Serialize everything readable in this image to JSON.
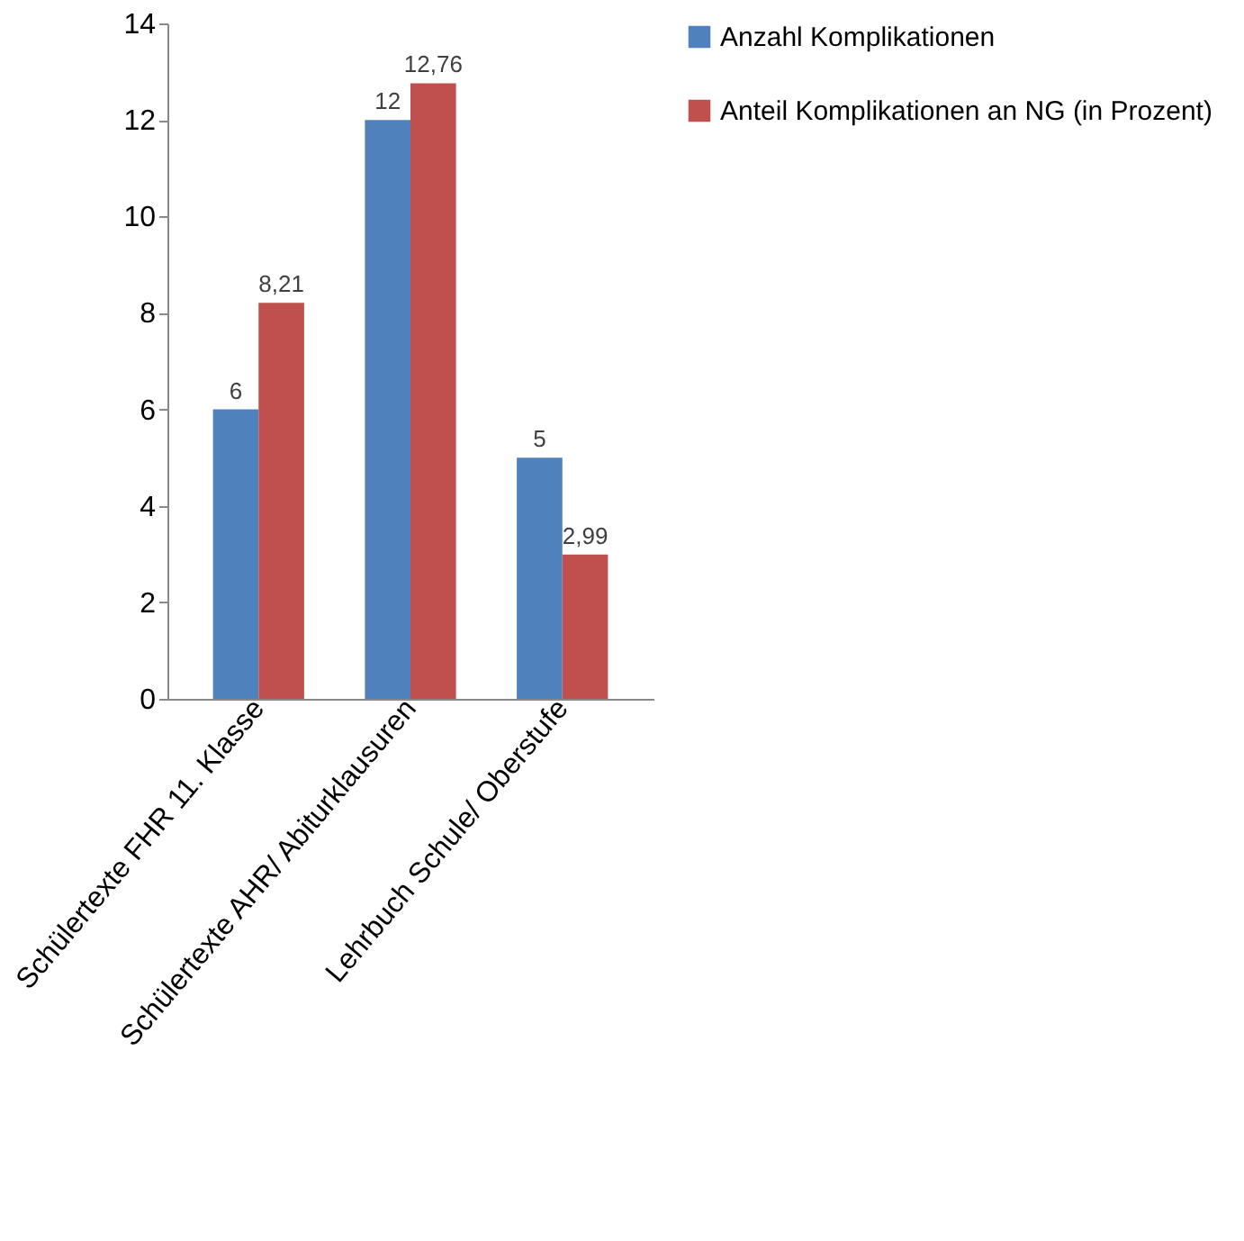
{
  "chart_data": {
    "type": "bar",
    "categories": [
      "Schülertexte FHR 11. Klasse",
      "Schülertexte AHR/ Abiturklausuren",
      "Lehrbuch Schule/ Oberstufe"
    ],
    "series": [
      {
        "name": "Anzahl Komplikationen",
        "color": "#4f81bd",
        "values": [
          6,
          12,
          5
        ],
        "value_labels": [
          "6",
          "12",
          "5"
        ]
      },
      {
        "name": "Anteil Komplikationen an NG (in Prozent)",
        "color": "#c0504d",
        "values": [
          8.21,
          12.76,
          2.99
        ],
        "value_labels": [
          "8,21",
          "12,76",
          "2,99"
        ]
      }
    ],
    "ylim": [
      0,
      14
    ],
    "yticks": [
      0,
      2,
      4,
      6,
      8,
      10,
      12,
      14
    ],
    "grid": false,
    "legend": "right"
  }
}
